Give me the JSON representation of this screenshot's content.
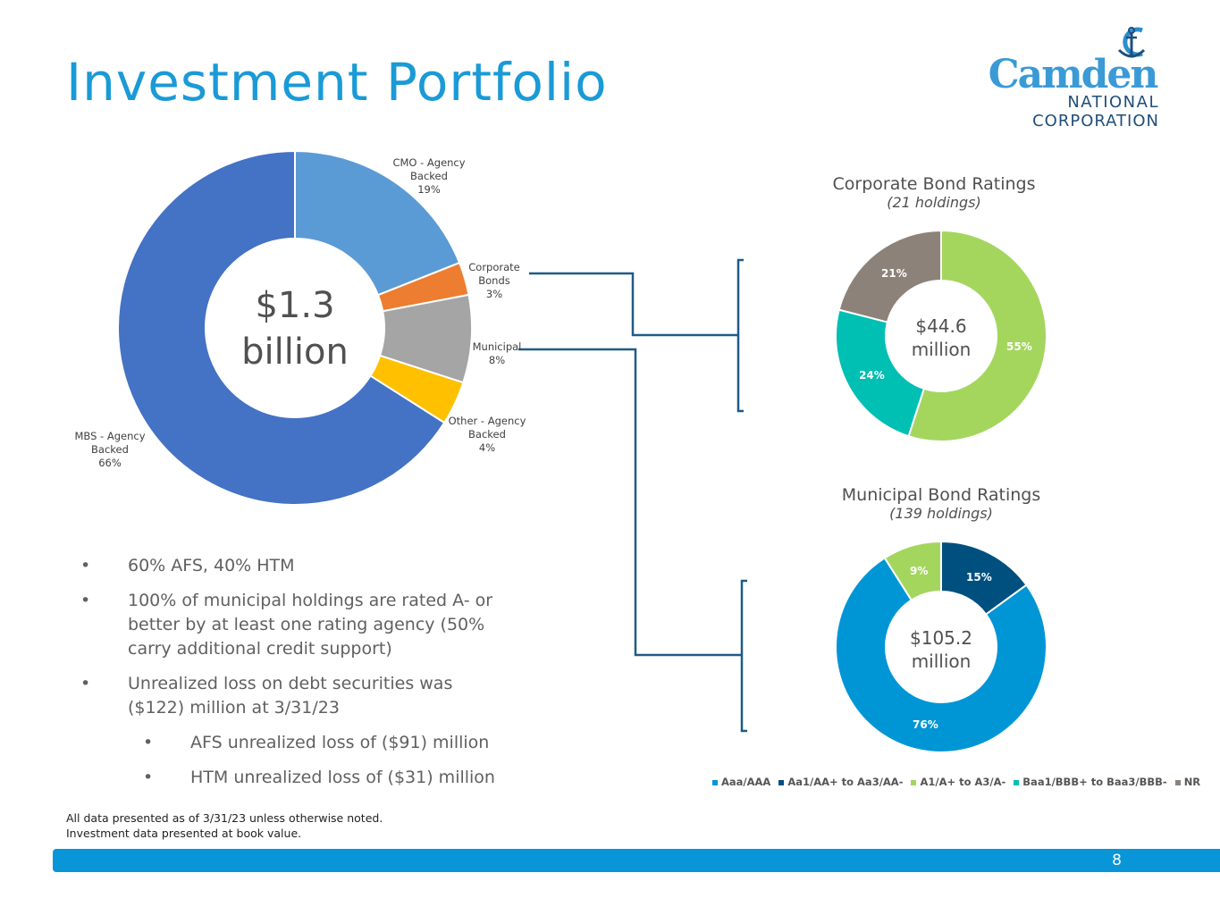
{
  "title": "Investment Portfolio",
  "logo": {
    "name": "Camden",
    "line2": "NATIONAL",
    "line3": "CORPORATION"
  },
  "main_chart": {
    "center_line1": "$1.3",
    "center_line2": "billion",
    "slices": [
      {
        "name": "CMO - Agency Backed",
        "label_lines": [
          "CMO - Agency",
          "Backed",
          "19%"
        ],
        "value": 19,
        "color": "#5b9bd5"
      },
      {
        "name": "Corporate Bonds",
        "label_lines": [
          "Corporate",
          "Bonds",
          "3%"
        ],
        "value": 3,
        "color": "#ed7d31"
      },
      {
        "name": "Municipal",
        "label_lines": [
          "Municipal",
          "8%"
        ],
        "value": 8,
        "color": "#a5a5a5"
      },
      {
        "name": "Other - Agency Backed",
        "label_lines": [
          "Other - Agency",
          "Backed",
          "4%"
        ],
        "value": 4,
        "color": "#ffc000"
      },
      {
        "name": "MBS - Agency Backed",
        "label_lines": [
          "MBS - Agency",
          "Backed",
          "66%"
        ],
        "value": 66,
        "color": "#4472c4"
      }
    ]
  },
  "corporate": {
    "title": "Corporate Bond Ratings",
    "subtitle": "(21 holdings)",
    "center_line1": "$44.6",
    "center_line2": "million",
    "slices": [
      {
        "rating": "A1/A+ to A3/A-",
        "value": 55,
        "label": "55%",
        "color": "#a4d65e"
      },
      {
        "rating": "Baa1/BBB+ to Baa3/BBB-",
        "value": 24,
        "label": "24%",
        "color": "#00bfb3"
      },
      {
        "rating": "NR",
        "value": 21,
        "label": "21%",
        "color": "#8c8279"
      }
    ]
  },
  "municipal": {
    "title": "Municipal Bond Ratings",
    "subtitle": "(139 holdings)",
    "center_line1": "$105.2",
    "center_line2": "million",
    "slices": [
      {
        "rating": "Aa1/AA+ to Aa3/AA-",
        "value": 15,
        "label": "15%",
        "color": "#00507f"
      },
      {
        "rating": "Aaa/AAA",
        "value": 76,
        "label": "76%",
        "color": "#0096d6"
      },
      {
        "rating": "A1/A+ to A3/A-",
        "value": 9,
        "label": "9%",
        "color": "#a4d65e"
      }
    ]
  },
  "legend": [
    {
      "label": "Aaa/AAA",
      "color": "#0096d6"
    },
    {
      "label": "Aa1/AA+ to Aa3/AA-",
      "color": "#00507f"
    },
    {
      "label": "A1/A+ to A3/A-",
      "color": "#a4d65e"
    },
    {
      "label": "Baa1/BBB+ to Baa3/BBB-",
      "color": "#00bfb3"
    },
    {
      "label": "NR",
      "color": "#8c8279"
    }
  ],
  "bullets": [
    {
      "bullet": "•",
      "text": "60% AFS, 40% HTM"
    },
    {
      "bullet": "•",
      "text": "100% of municipal holdings are rated A- or better by at least one rating agency (50% carry additional credit support)"
    },
    {
      "bullet": "•",
      "text": "Unrealized loss on debt securities was ($122) million at 3/31/23"
    },
    {
      "bullet": "•",
      "text": "AFS unrealized loss of ($91) million"
    },
    {
      "bullet": "•",
      "text": "HTM unrealized loss of ($31) million"
    }
  ],
  "footnote": {
    "line1": "All data presented as of 3/31/23 unless otherwise noted.",
    "line2": "Investment data presented at book value."
  },
  "page_number": "8"
}
